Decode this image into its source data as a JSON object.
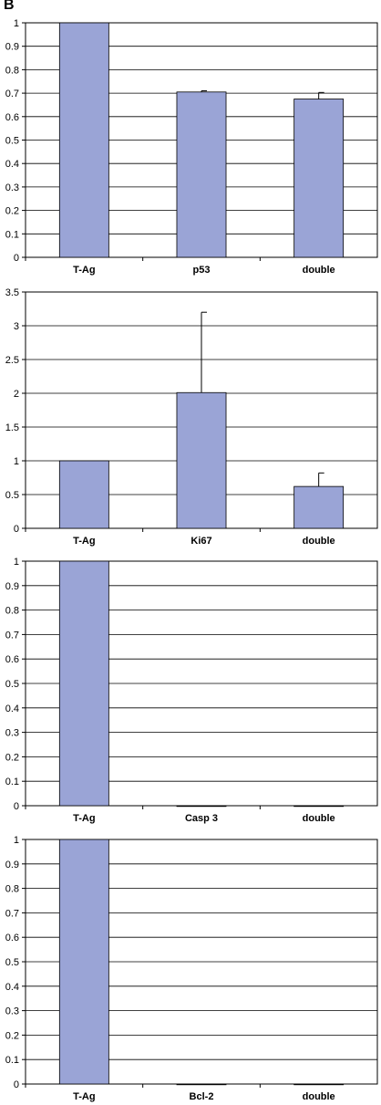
{
  "panel_label": "B",
  "colors": {
    "bar": "#9aa4d6",
    "bar_stroke": "#000000",
    "grid": "#000000",
    "axis": "#000000"
  },
  "chart_data": [
    {
      "type": "bar",
      "title": "",
      "categories": [
        "T-Ag",
        "p53",
        "double"
      ],
      "values": [
        1.0,
        0.705,
        0.675
      ],
      "errors": [
        null,
        0.005,
        0.028
      ],
      "ylim": [
        0,
        1
      ],
      "yticks": [
        0,
        0.1,
        0.2,
        0.3,
        0.4,
        0.5,
        0.6,
        0.7,
        0.8,
        0.9,
        1
      ],
      "ytick_labels": [
        "0",
        "0.1",
        "0.2",
        "0.3",
        "0.4",
        "0.5",
        "0.6",
        "0.7",
        "0.8",
        "0.9",
        "1"
      ],
      "grid": true
    },
    {
      "type": "bar",
      "title": "",
      "categories": [
        "T-Ag",
        "Ki67",
        "double"
      ],
      "values": [
        1.0,
        2.01,
        0.62
      ],
      "errors": [
        null,
        1.19,
        0.2
      ],
      "ylim": [
        0,
        3.5
      ],
      "yticks": [
        0,
        0.5,
        1,
        1.5,
        2,
        2.5,
        3,
        3.5
      ],
      "ytick_labels": [
        "0",
        "0.5",
        "1",
        "1.5",
        "2",
        "2.5",
        "3",
        "3.5"
      ],
      "grid": true
    },
    {
      "type": "bar",
      "title": "",
      "categories": [
        "T-Ag",
        "Casp 3",
        "double"
      ],
      "values": [
        1.0,
        0.0,
        0.0
      ],
      "errors": [
        null,
        null,
        null
      ],
      "ylim": [
        0,
        1
      ],
      "yticks": [
        0,
        0.1,
        0.2,
        0.3,
        0.4,
        0.5,
        0.6,
        0.7,
        0.8,
        0.9,
        1
      ],
      "ytick_labels": [
        "0",
        "0.1",
        "0.2",
        "0.3",
        "0.4",
        "0.5",
        "0.6",
        "0.7",
        "0.8",
        "0.9",
        "1"
      ],
      "grid": true
    },
    {
      "type": "bar",
      "title": "",
      "categories": [
        "T-Ag",
        "Bcl-2",
        "double"
      ],
      "values": [
        1.0,
        0.0,
        0.0
      ],
      "errors": [
        null,
        null,
        null
      ],
      "ylim": [
        0,
        1
      ],
      "yticks": [
        0,
        0.1,
        0.2,
        0.3,
        0.4,
        0.5,
        0.6,
        0.7,
        0.8,
        0.9,
        1
      ],
      "ytick_labels": [
        "0",
        "0.1",
        "0.2",
        "0.3",
        "0.4",
        "0.5",
        "0.6",
        "0.7",
        "0.8",
        "0.9",
        "1"
      ],
      "grid": true
    }
  ]
}
